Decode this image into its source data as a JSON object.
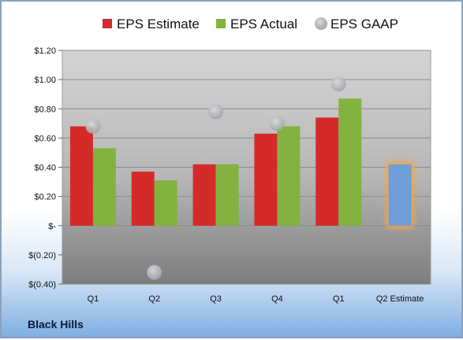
{
  "company": "Black Hills",
  "chart_data": {
    "type": "bar",
    "categories": [
      "Q1",
      "Q2",
      "Q3",
      "Q4",
      "Q1",
      "Q2 Estimate"
    ],
    "series": [
      {
        "name": "EPS Estimate",
        "color": "#d42a2a",
        "values": [
          0.68,
          0.37,
          0.42,
          0.63,
          0.74,
          null
        ]
      },
      {
        "name": "EPS Actual",
        "color": "#82b33e",
        "values": [
          0.53,
          0.31,
          0.42,
          0.68,
          0.87,
          null
        ]
      },
      {
        "name": "EPS GAAP",
        "color": "#b9bcc2",
        "marker": "circle",
        "values": [
          0.68,
          -0.32,
          0.78,
          0.7,
          0.97,
          null
        ]
      }
    ],
    "projection": {
      "category": "Q2 Estimate",
      "value": 0.42,
      "color": "#6f9fd8",
      "glow": "#f2a64a"
    },
    "ylim": [
      -0.4,
      1.2
    ],
    "yticks": [
      1.2,
      1.0,
      0.8,
      0.6,
      0.4,
      0.2,
      0.0,
      -0.2,
      -0.4
    ],
    "ytick_labels": [
      "$1.20",
      "$1.00",
      "$0.80",
      "$0.60",
      "$0.40",
      "$0.20",
      "$-",
      "$(0.20)",
      "$(0.40)"
    ],
    "legend_position": "top",
    "grid": true
  }
}
